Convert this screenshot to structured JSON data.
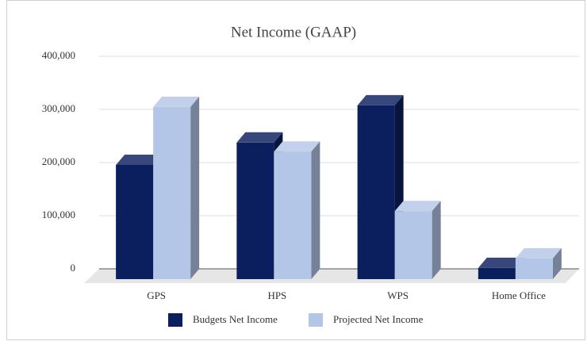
{
  "chart_data": {
    "type": "bar3d",
    "title": "Net Income (GAAP)",
    "categories": [
      "GPS",
      "HPS",
      "WPS",
      "Home Office"
    ],
    "series": [
      {
        "name": "Budgets Net Income",
        "color": "#0b1f5e",
        "values": [
          215000,
          257000,
          327000,
          21000
        ]
      },
      {
        "name": "Projected Net Income",
        "color": "#b4c6e7",
        "values": [
          324000,
          240000,
          128000,
          39000
        ]
      }
    ],
    "ylim": [
      0,
      400000
    ],
    "yticks": [
      0,
      {
        "value": 100000,
        "label": "100,000"
      },
      {
        "value": 200000,
        "label": "200,000"
      },
      {
        "value": 300000,
        "label": "300,000"
      },
      {
        "value": 400000,
        "label": "400,000"
      }
    ],
    "grid": true,
    "legend": "bottom"
  }
}
